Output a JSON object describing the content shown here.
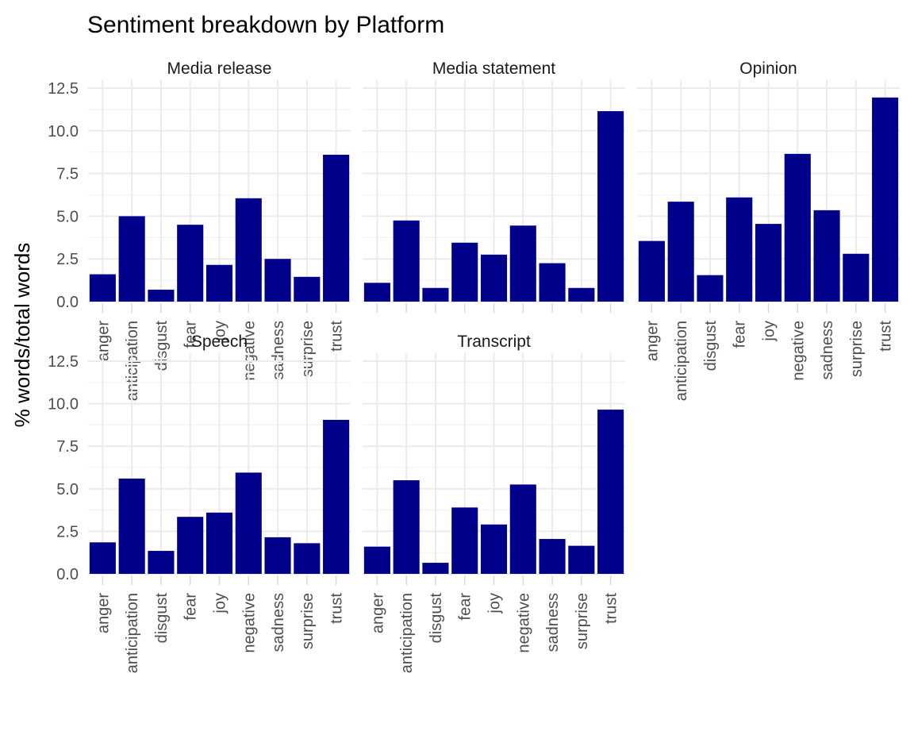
{
  "chart_data": {
    "type": "bar",
    "title": "Sentiment breakdown by Platform",
    "xlabel": "",
    "ylabel": "% words/total words",
    "ylim": [
      0,
      12.5
    ],
    "yticks": [
      "0.0",
      "2.5",
      "5.0",
      "7.5",
      "10.0",
      "12.5"
    ],
    "categories": [
      "anger",
      "anticipation",
      "disgust",
      "fear",
      "joy",
      "negative",
      "sadness",
      "surprise",
      "trust"
    ],
    "bar_color": "#00008B",
    "grid": true,
    "facets": [
      {
        "name": "Media release",
        "values": [
          1.6,
          5.0,
          0.7,
          4.5,
          2.15,
          6.05,
          2.5,
          1.45,
          8.6
        ]
      },
      {
        "name": "Media statement",
        "values": [
          1.1,
          4.75,
          0.8,
          3.45,
          2.75,
          4.45,
          2.25,
          0.8,
          11.15
        ]
      },
      {
        "name": "Opinion",
        "values": [
          3.55,
          5.85,
          1.55,
          6.1,
          4.55,
          8.65,
          5.35,
          2.8,
          11.95
        ]
      },
      {
        "name": "Speech",
        "values": [
          1.85,
          5.6,
          1.35,
          3.35,
          3.6,
          5.95,
          2.15,
          1.8,
          9.05
        ]
      },
      {
        "name": "Transcript",
        "values": [
          1.6,
          5.5,
          0.65,
          3.9,
          2.9,
          5.25,
          2.05,
          1.65,
          9.65
        ]
      }
    ]
  }
}
